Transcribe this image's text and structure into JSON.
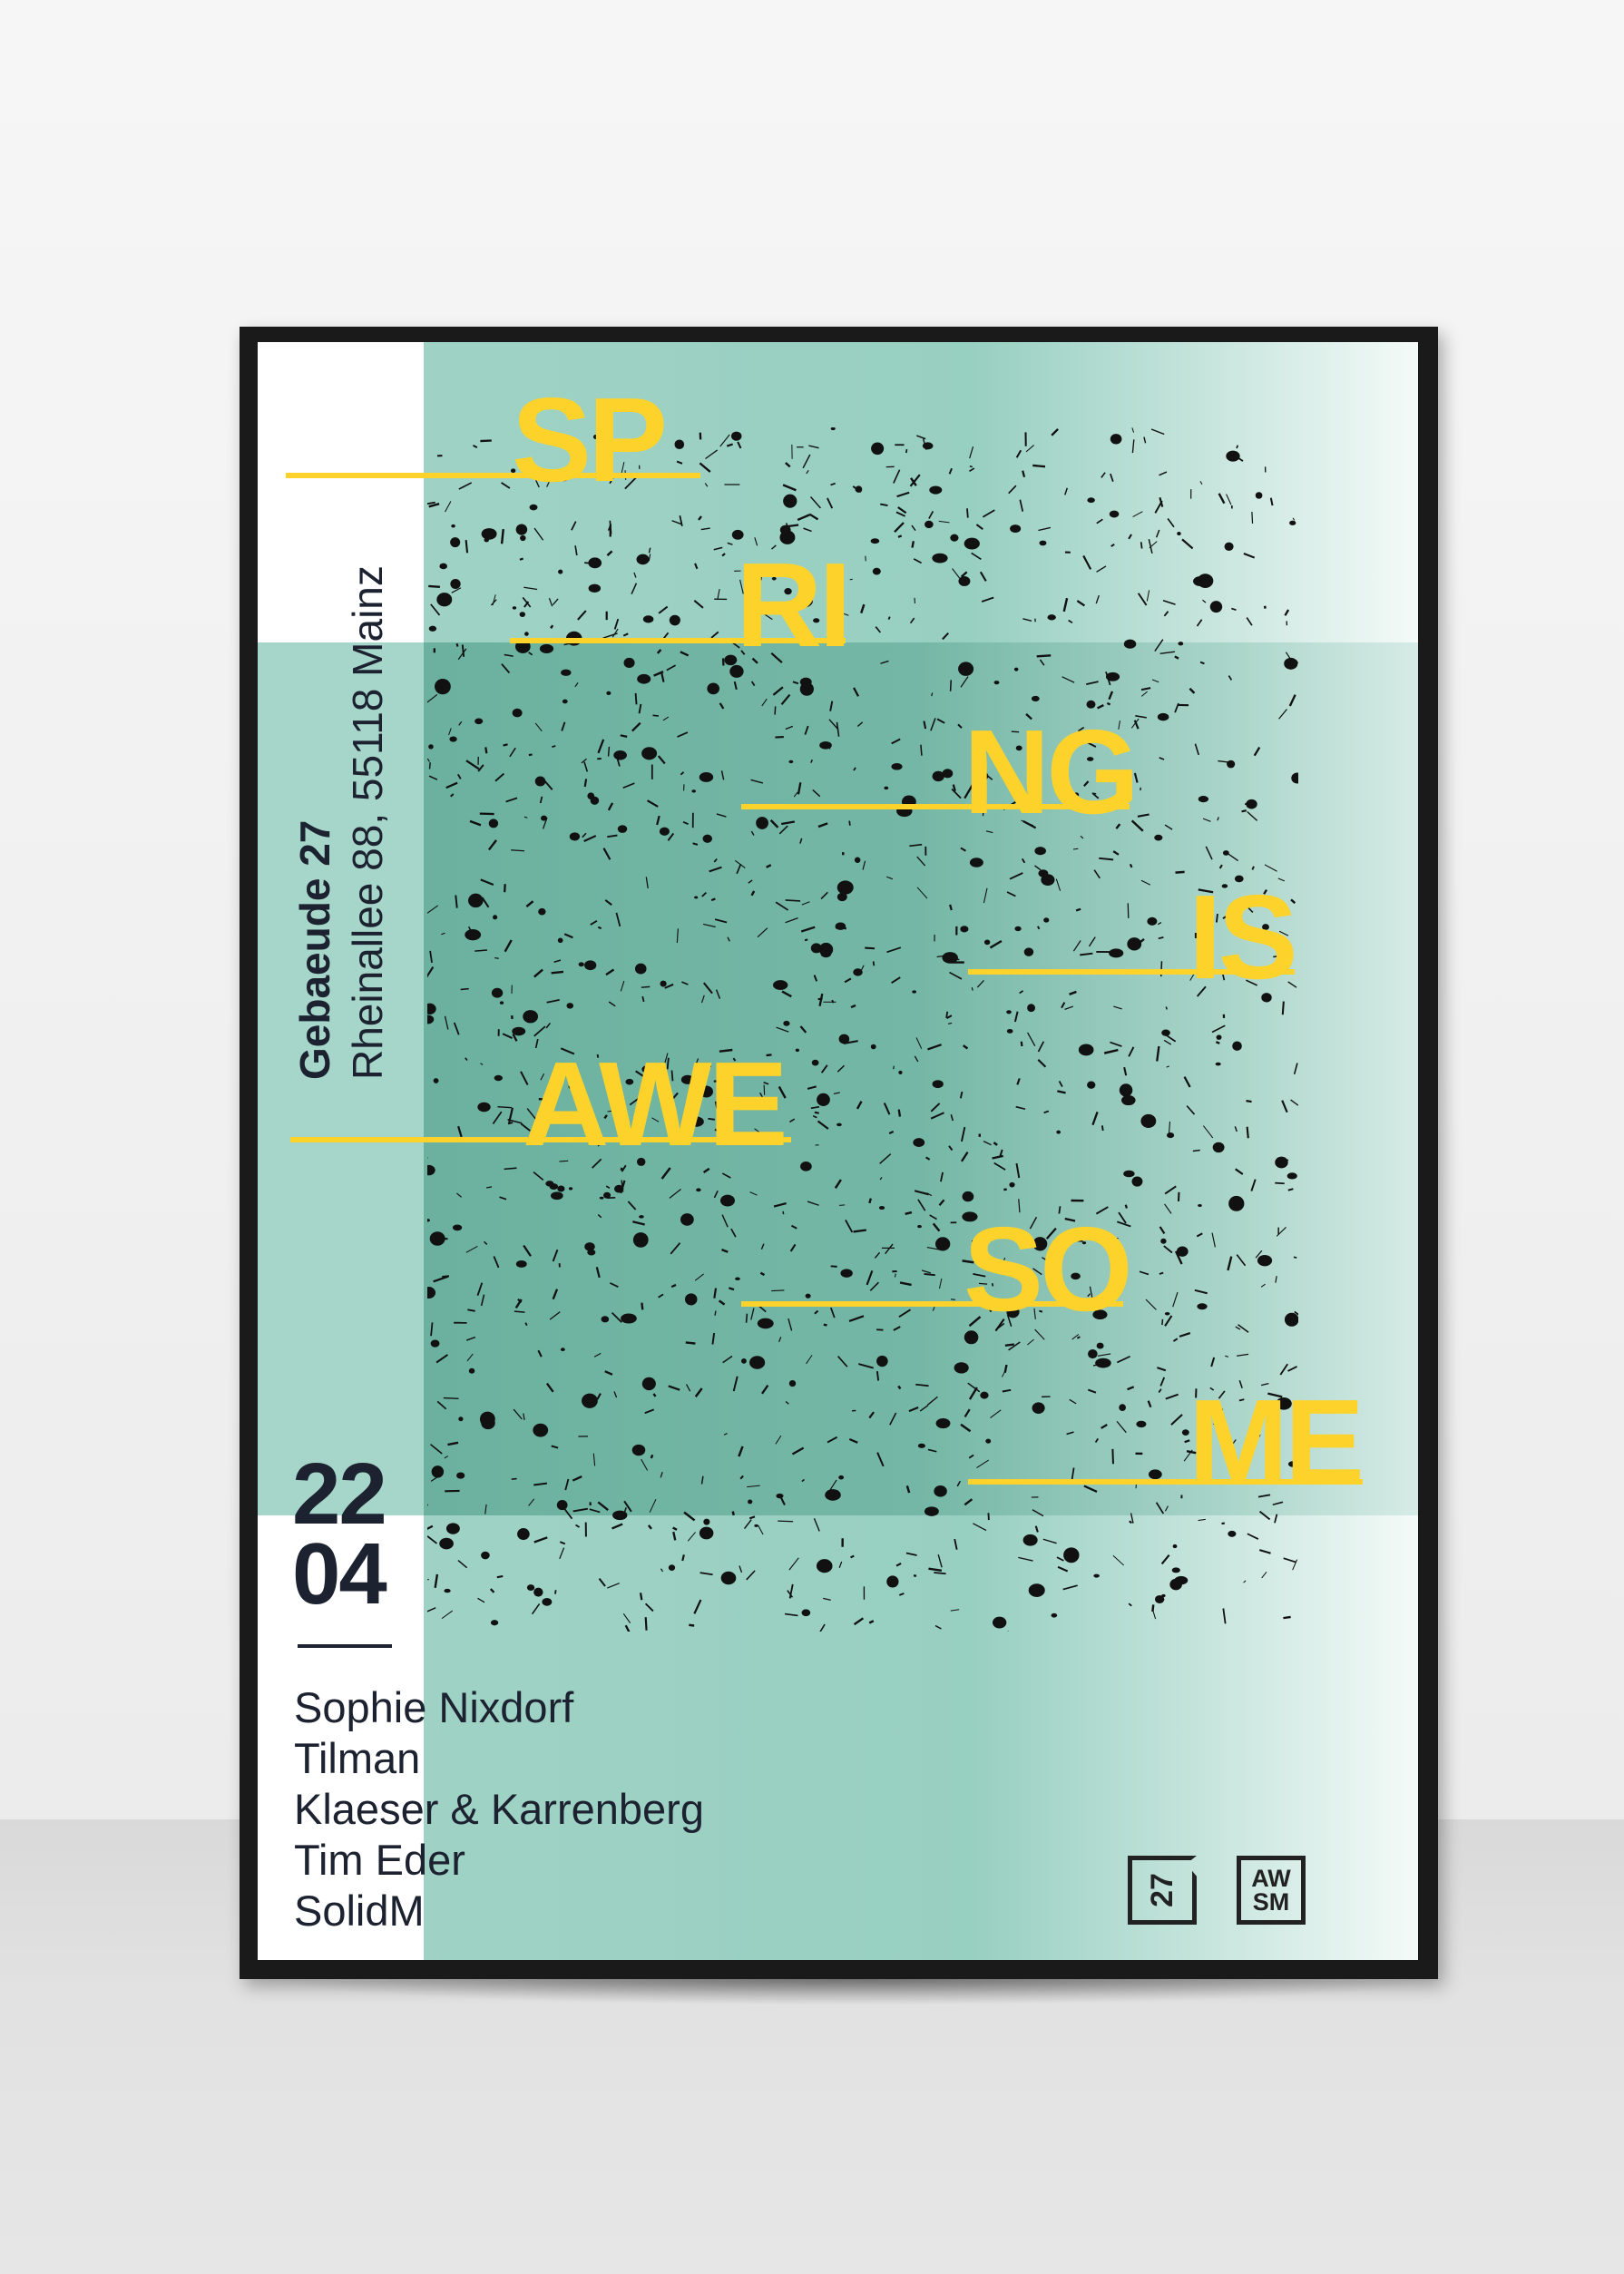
{
  "poster": {
    "title_words": [
      "SP",
      "RI",
      "NG",
      "IS",
      "AWE",
      "SO",
      "ME"
    ],
    "venue": "Gebaeude 27",
    "address": "Rheinallee 88, 55118 Mainz",
    "date_day": "22",
    "date_month": "04",
    "lineup": [
      "Sophie Nixdorf",
      "Tilman",
      "Klaeser & Karrenberg",
      "Tim Eder",
      "SolidM"
    ],
    "logos": {
      "left": "27",
      "right_top": "AW",
      "right_bottom": "SM"
    },
    "colors": {
      "accent": "#fdd22b",
      "teal": "#9fd2c5",
      "dark_teal": "#6cb19f",
      "text": "#1c2230"
    }
  }
}
